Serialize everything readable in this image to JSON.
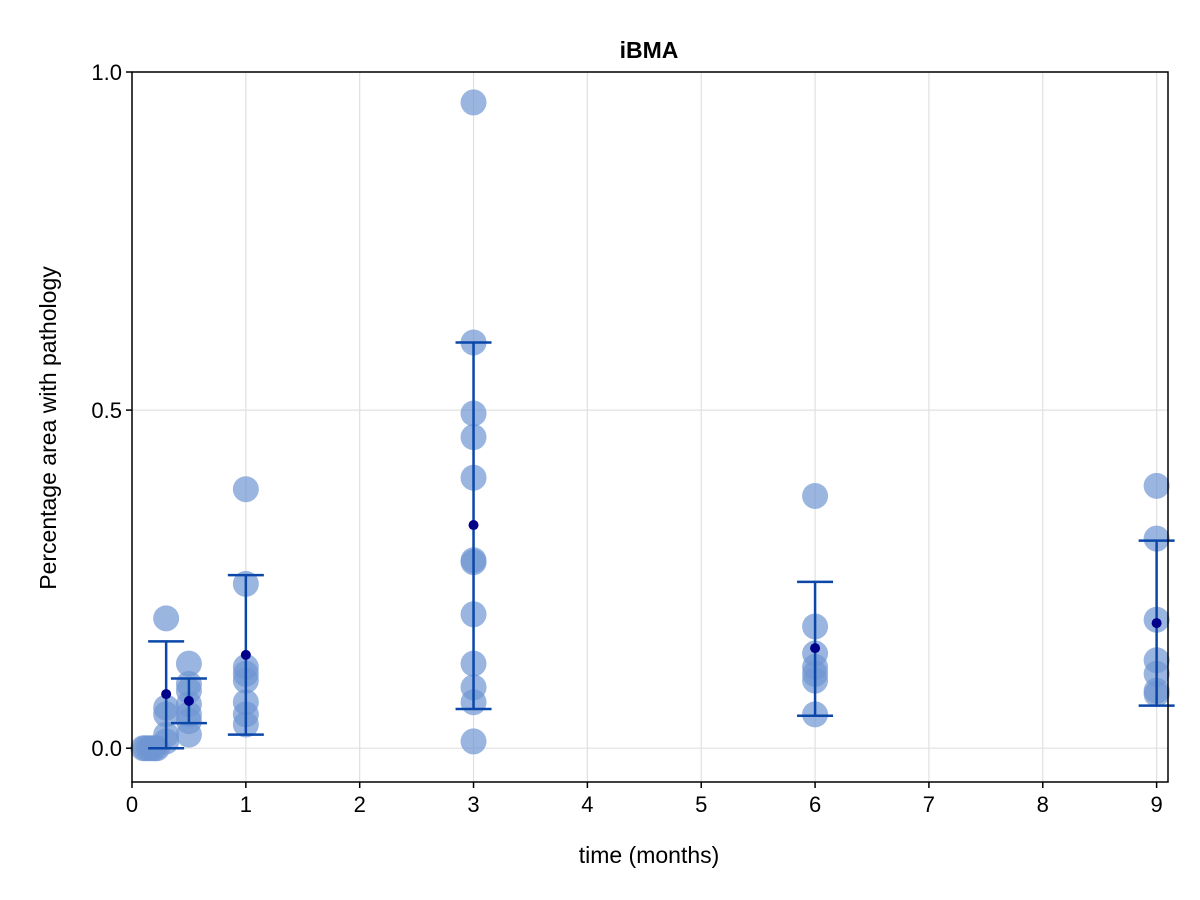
{
  "chart_data": {
    "type": "scatter",
    "title": "iBMA",
    "xlabel": "time (months)",
    "ylabel": "Percentage area with pathology",
    "xlim": [
      0,
      9.1
    ],
    "ylim": [
      -0.05,
      1.0
    ],
    "x_ticks": [
      0,
      1,
      2,
      3,
      4,
      5,
      6,
      7,
      8,
      9
    ],
    "x_tick_labels": [
      "0",
      "1",
      "2",
      "3",
      "4",
      "5",
      "6",
      "7",
      "8",
      "9"
    ],
    "y_ticks": [
      0.0,
      0.5,
      1.0
    ],
    "y_tick_labels": [
      "0.0",
      "0.5",
      "1.0"
    ],
    "grid": true,
    "colors": {
      "points": "#6f95d2",
      "mean_marker": "#00008b",
      "error_bar": "#0a47a8",
      "grid": "#e0e0e0",
      "axis": "#000000"
    },
    "points": [
      {
        "x": 0.1,
        "y": 0.0
      },
      {
        "x": 0.12,
        "y": 0.0
      },
      {
        "x": 0.15,
        "y": 0.0
      },
      {
        "x": 0.18,
        "y": 0.0
      },
      {
        "x": 0.2,
        "y": 0.0
      },
      {
        "x": 0.22,
        "y": 0.0
      },
      {
        "x": 0.3,
        "y": 0.192
      },
      {
        "x": 0.3,
        "y": 0.06
      },
      {
        "x": 0.3,
        "y": 0.05
      },
      {
        "x": 0.3,
        "y": 0.02
      },
      {
        "x": 0.3,
        "y": 0.01
      },
      {
        "x": 0.5,
        "y": 0.125
      },
      {
        "x": 0.5,
        "y": 0.095
      },
      {
        "x": 0.5,
        "y": 0.085
      },
      {
        "x": 0.5,
        "y": 0.065
      },
      {
        "x": 0.5,
        "y": 0.05
      },
      {
        "x": 0.5,
        "y": 0.04
      },
      {
        "x": 0.5,
        "y": 0.02
      },
      {
        "x": 1,
        "y": 0.383
      },
      {
        "x": 1,
        "y": 0.243
      },
      {
        "x": 1,
        "y": 0.12
      },
      {
        "x": 1,
        "y": 0.11
      },
      {
        "x": 1,
        "y": 0.1
      },
      {
        "x": 1,
        "y": 0.068
      },
      {
        "x": 1,
        "y": 0.05
      },
      {
        "x": 1,
        "y": 0.035
      },
      {
        "x": 3,
        "y": 0.955
      },
      {
        "x": 3,
        "y": 0.6
      },
      {
        "x": 3,
        "y": 0.495
      },
      {
        "x": 3,
        "y": 0.46
      },
      {
        "x": 3,
        "y": 0.4
      },
      {
        "x": 3,
        "y": 0.278
      },
      {
        "x": 3,
        "y": 0.275
      },
      {
        "x": 3,
        "y": 0.198
      },
      {
        "x": 3,
        "y": 0.125
      },
      {
        "x": 3,
        "y": 0.09
      },
      {
        "x": 3,
        "y": 0.068
      },
      {
        "x": 3,
        "y": 0.01
      },
      {
        "x": 6,
        "y": 0.373
      },
      {
        "x": 6,
        "y": 0.18
      },
      {
        "x": 6,
        "y": 0.14
      },
      {
        "x": 6,
        "y": 0.12
      },
      {
        "x": 6,
        "y": 0.11
      },
      {
        "x": 6,
        "y": 0.1
      },
      {
        "x": 6,
        "y": 0.05
      },
      {
        "x": 9,
        "y": 0.388
      },
      {
        "x": 9,
        "y": 0.31
      },
      {
        "x": 9,
        "y": 0.19
      },
      {
        "x": 9,
        "y": 0.13
      },
      {
        "x": 9,
        "y": 0.11
      },
      {
        "x": 9,
        "y": 0.085
      },
      {
        "x": 9,
        "y": 0.08
      }
    ],
    "summary": [
      {
        "x": 0.3,
        "mean": 0.08,
        "lower": 0.0,
        "upper": 0.158
      },
      {
        "x": 0.5,
        "mean": 0.07,
        "lower": 0.037,
        "upper": 0.103
      },
      {
        "x": 1,
        "mean": 0.138,
        "lower": 0.02,
        "upper": 0.256
      },
      {
        "x": 3,
        "mean": 0.33,
        "lower": 0.058,
        "upper": 0.6
      },
      {
        "x": 6,
        "mean": 0.148,
        "lower": 0.048,
        "upper": 0.246
      },
      {
        "x": 9,
        "mean": 0.185,
        "lower": 0.063,
        "upper": 0.307
      }
    ]
  }
}
